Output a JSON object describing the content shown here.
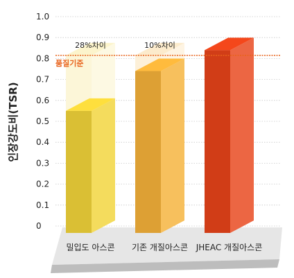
{
  "chart_data": {
    "type": "bar",
    "ylabel": "인장강도비(TSR)",
    "ylim": [
      0,
      1.0
    ],
    "yticks": [
      "1.0",
      "0.9",
      "0.8",
      "0.7",
      "0.6",
      "0.5",
      "0.4",
      "0.3",
      "0.2",
      "0.1",
      "0"
    ],
    "categories": [
      "밀입도 아스콘",
      "기존 개질아스콘",
      "JHEAC 개질아스콘"
    ],
    "values": [
      0.55,
      0.74,
      0.84
    ],
    "bar_colors": [
      "#f2d43a",
      "#f5b23a",
      "#e8441a"
    ],
    "reference_line": {
      "label": "품질기준",
      "value": 0.815,
      "color": "#e8631c"
    },
    "annotations": [
      "28%차이",
      "10%차이"
    ],
    "grid": true
  }
}
